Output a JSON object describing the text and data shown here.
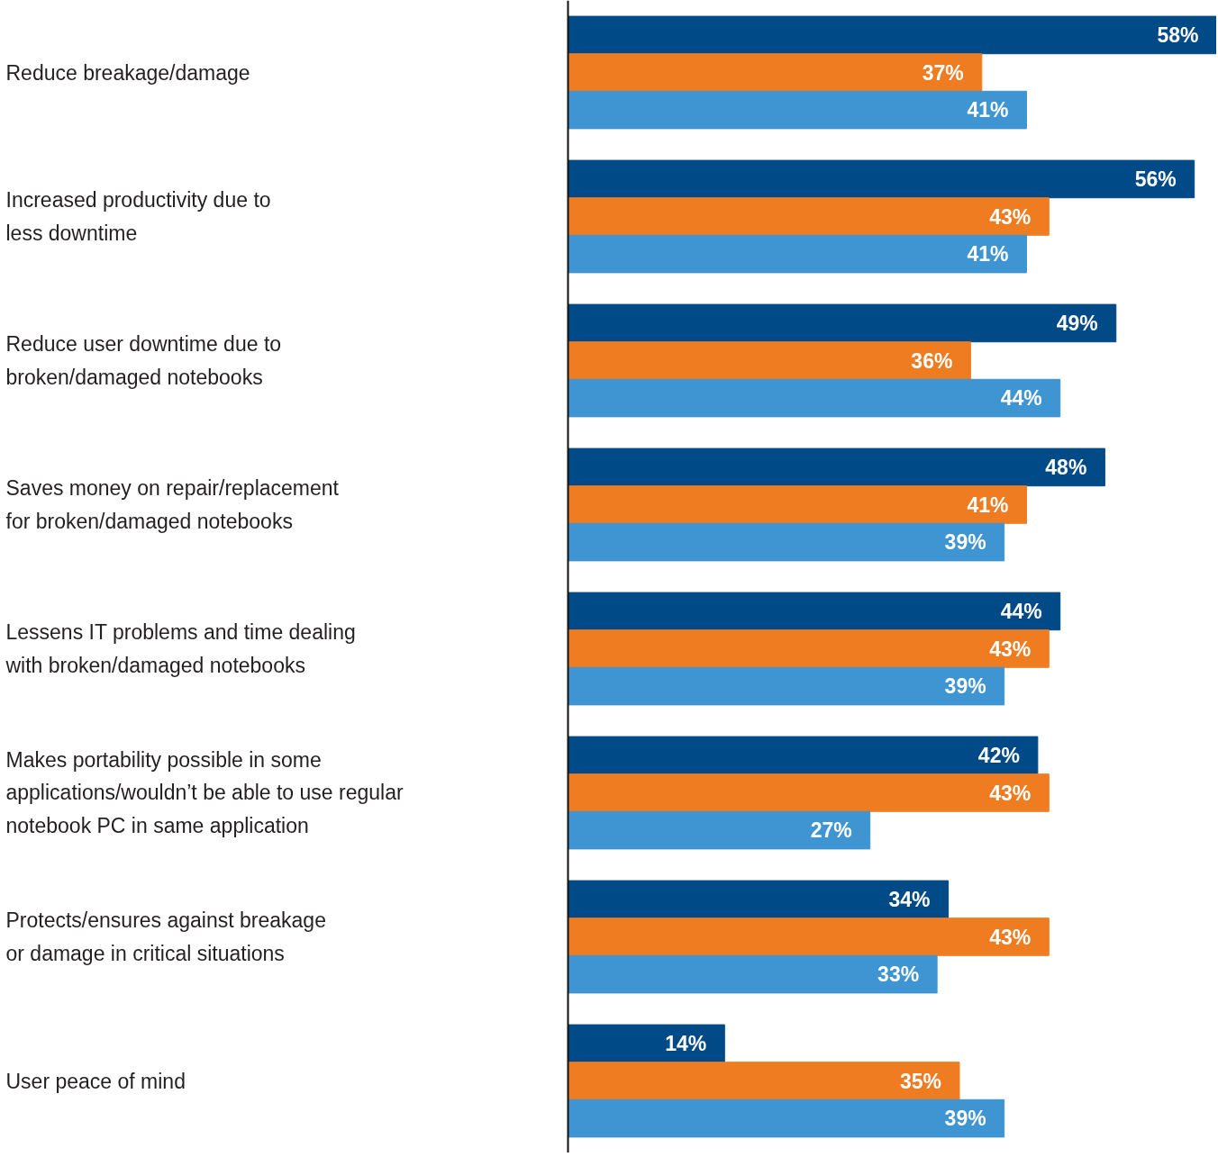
{
  "chart_data": {
    "type": "bar",
    "orientation": "horizontal",
    "categories": [
      "Reduce breakage/damage",
      "Increased productivity due to\nless downtime",
      "Reduce user downtime due to\nbroken/damaged notebooks",
      "Saves money on repair/replacement\nfor broken/damaged notebooks",
      "Lessens IT problems and time dealing\nwith broken/damaged notebooks",
      "Makes portability possible in some\napplications/wouldn’t be able to use regular\nnotebook PC in same application",
      "Protects/ensures against breakage\nor damage in critical situations",
      "User peace of mind"
    ],
    "series": [
      {
        "color": "#004a87",
        "values": [
          58,
          56,
          49,
          48,
          44,
          42,
          34,
          14
        ],
        "value_labels": [
          "58%",
          "56%",
          "49%",
          "48%",
          "44%",
          "42%",
          "34%",
          "14%"
        ]
      },
      {
        "color": "#f07c22",
        "values": [
          37,
          43,
          36,
          41,
          43,
          43,
          43,
          35
        ],
        "value_labels": [
          "37%",
          "43%",
          "36%",
          "41%",
          "43%",
          "43%",
          "43%",
          "35%"
        ]
      },
      {
        "color": "#3f95d2",
        "values": [
          41,
          41,
          44,
          39,
          39,
          27,
          33,
          39
        ],
        "value_labels": [
          "41%",
          "41%",
          "44%",
          "39%",
          "39%",
          "27%",
          "33%",
          "39%"
        ]
      }
    ]
  }
}
